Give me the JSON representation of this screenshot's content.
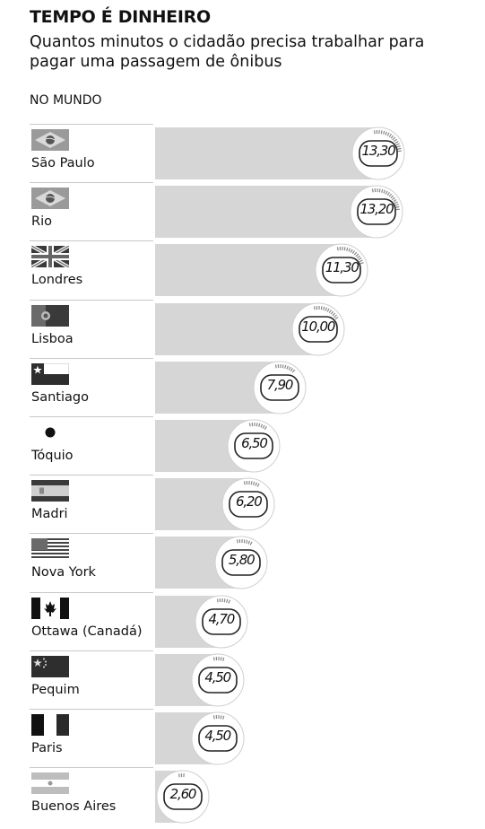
{
  "header": {
    "title": "TEMPO É DINHEIRO",
    "subtitle": "Quantos minutos o cidadão precisa trabalhar para pagar uma passagem de ônibus",
    "section": "NO MUNDO"
  },
  "chart_data": {
    "type": "bar",
    "orientation": "horizontal",
    "categories": [
      "São Paulo",
      "Rio",
      "Londres",
      "Lisboa",
      "Santiago",
      "Tóquio",
      "Madri",
      "Nova York",
      "Ottawa (Canadá)",
      "Pequim",
      "Paris",
      "Buenos Aires"
    ],
    "values": [
      13.3,
      13.2,
      11.3,
      10.0,
      7.9,
      6.5,
      6.2,
      5.8,
      4.7,
      4.5,
      4.5,
      2.6
    ],
    "value_labels": [
      "13,30",
      "13,20",
      "11,30",
      "10,00",
      "7,90",
      "6,50",
      "6,20",
      "5,80",
      "4,70",
      "4,50",
      "4,50",
      "2,60"
    ],
    "flags": [
      "brazil-flag-icon",
      "brazil-flag-icon",
      "uk-flag-icon",
      "portugal-flag-icon",
      "chile-flag-icon",
      "japan-flag-icon",
      "spain-flag-icon",
      "usa-flag-icon",
      "canada-flag-icon",
      "china-flag-icon",
      "france-flag-icon",
      "argentina-flag-icon"
    ],
    "xlim": [
      0,
      13.3
    ],
    "grid": false,
    "legend": "none",
    "colors": {
      "bar": "#d6d6d6",
      "dial_bg": "#ffffff",
      "dial_border": "#222222",
      "tick": "#888888"
    }
  }
}
